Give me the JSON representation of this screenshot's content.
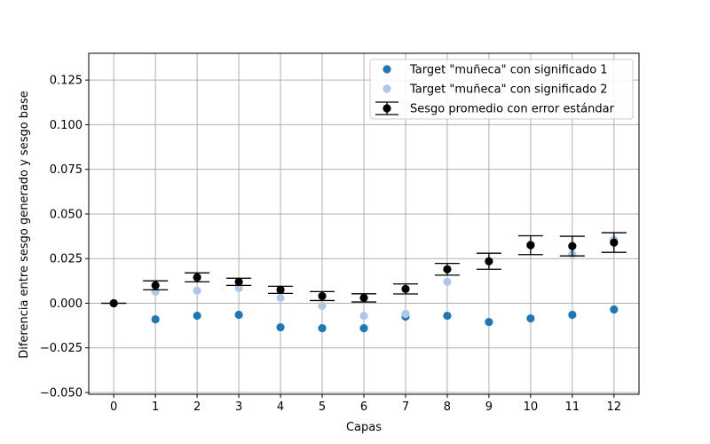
{
  "chart_data": {
    "type": "scatter",
    "xlabel": "Capas",
    "ylabel": "Diferencia entre sesgo generado y sesgo base",
    "x_ticks": [
      "0",
      "1",
      "2",
      "3",
      "4",
      "5",
      "6",
      "7",
      "8",
      "9",
      "10",
      "11",
      "12"
    ],
    "y_ticks": [
      "−0.050",
      "−0.025",
      "0.000",
      "0.025",
      "0.050",
      "0.075",
      "0.100",
      "0.125"
    ],
    "xlim": [
      -0.6,
      12.6
    ],
    "ylim": [
      -0.051,
      0.14
    ],
    "grid": true,
    "legend_position": "top-right",
    "colors": {
      "series1": "#1f77b4",
      "series2": "#aec7e8",
      "mean": "#000000",
      "grid": "#b0b0b0"
    },
    "series": [
      {
        "name": "Target \"muñeca\" con significado 1",
        "x": [
          0,
          1,
          2,
          3,
          4,
          5,
          6,
          7,
          8,
          9,
          10,
          11,
          12
        ],
        "values": [
          0.0,
          -0.009,
          -0.007,
          -0.0065,
          -0.0135,
          -0.014,
          -0.014,
          -0.0075,
          -0.007,
          -0.0105,
          -0.0085,
          -0.0065,
          -0.0035
        ]
      },
      {
        "name": "Target \"muñeca\" con significado 2",
        "x": [
          0,
          1,
          2,
          3,
          4,
          5,
          6,
          7,
          8,
          9,
          10,
          11,
          12
        ],
        "values": [
          0.0,
          0.0065,
          0.007,
          0.0085,
          0.003,
          -0.0015,
          -0.007,
          -0.006,
          0.012,
          0.0235,
          0.033,
          0.0275,
          0.0355
        ]
      },
      {
        "name": "Sesgo promedio con error estándar",
        "x": [
          0,
          1,
          2,
          3,
          4,
          5,
          6,
          7,
          8,
          9,
          10,
          11,
          12
        ],
        "values": [
          0.0,
          0.01,
          0.0145,
          0.012,
          0.0075,
          0.004,
          0.003,
          0.008,
          0.019,
          0.0235,
          0.0325,
          0.032,
          0.034
        ],
        "error": [
          0.0,
          0.0025,
          0.0025,
          0.002,
          0.002,
          0.0025,
          0.0023,
          0.0028,
          0.0033,
          0.0045,
          0.0053,
          0.0055,
          0.0055
        ]
      }
    ]
  }
}
